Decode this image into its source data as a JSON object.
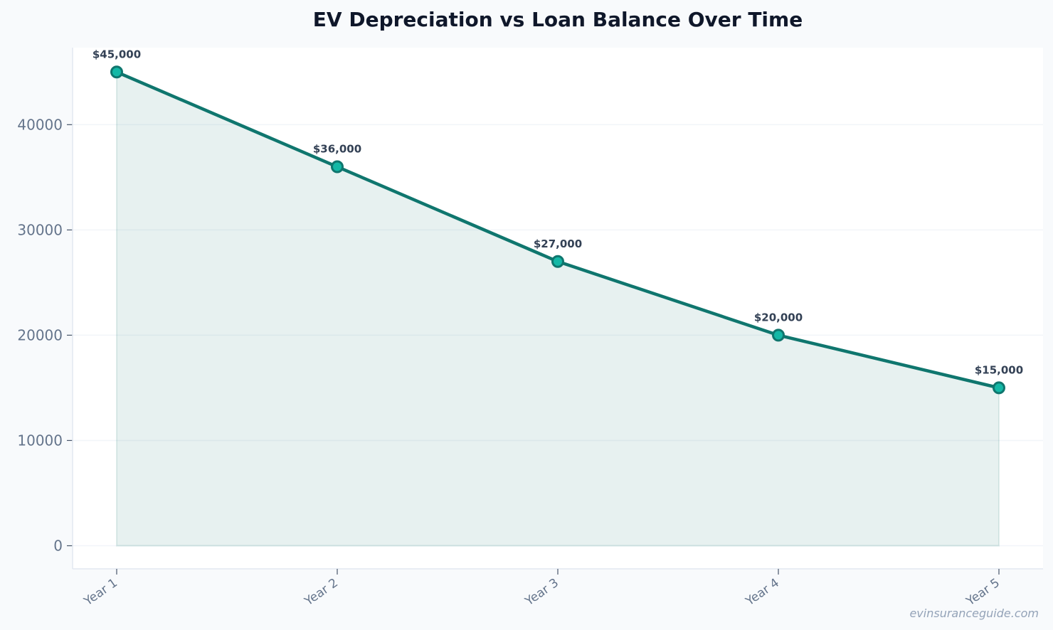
{
  "chart_data": {
    "type": "line",
    "title": "EV Depreciation vs Loan Balance Over Time",
    "xlabel": "",
    "ylabel": "",
    "categories": [
      "Year 1",
      "Year 2",
      "Year 3",
      "Year 4",
      "Year 5"
    ],
    "series": [
      {
        "values": [
          45000,
          36000,
          27000,
          20000,
          15000
        ],
        "labels": [
          "$45,000",
          "$36,000",
          "$27,000",
          "$20,000",
          "$15,000"
        ],
        "color": "#0f766e",
        "marker_color": "#14b8a6",
        "fill": "area"
      }
    ],
    "yticks": [
      0,
      10000,
      20000,
      30000,
      40000
    ],
    "ytick_labels": [
      "0",
      "10000",
      "20000",
      "30000",
      "40000"
    ],
    "ylim": [
      -2250,
      47250
    ],
    "grid": true,
    "legend": "none"
  },
  "watermark": "evinsuranceguide.com"
}
